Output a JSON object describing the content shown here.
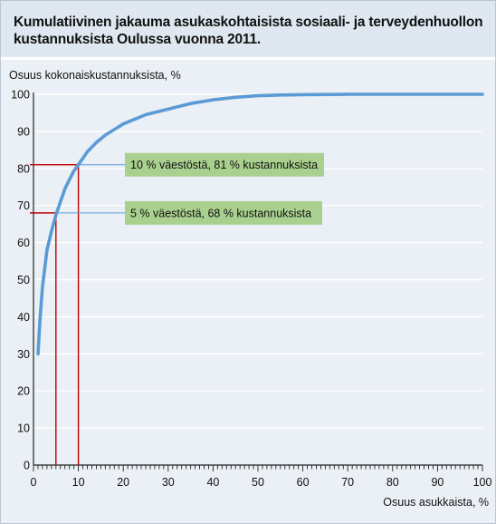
{
  "title": {
    "line1": "Kumulatiivinen jakauma asukaskohtaisista sosiaali- ja terveydenhuollon",
    "line2": "kustannuksista Oulussa vuonna 2011."
  },
  "chart_data": {
    "type": "line",
    "title": "Kumulatiivinen jakauma asukaskohtaisista sosiaali- ja terveydenhuollon kustannuksista Oulussa vuonna 2011.",
    "ylabel": "Osuus kokonaiskustannuksista, %",
    "xlabel": "Osuus asukkaista, %",
    "xlim": [
      0,
      100
    ],
    "ylim": [
      0,
      100
    ],
    "x_ticks": [
      0,
      10,
      20,
      30,
      40,
      50,
      60,
      70,
      80,
      90,
      100
    ],
    "y_ticks": [
      0,
      10,
      20,
      30,
      40,
      50,
      60,
      70,
      80,
      90,
      100
    ],
    "x_minor_step": 1,
    "grid": "horizontal",
    "series": [
      {
        "color": "#5b9bd5",
        "x": [
          1,
          1.5,
          2,
          3,
          4,
          5,
          6,
          7,
          8,
          9,
          10,
          12,
          14,
          16,
          18,
          20,
          25,
          30,
          35,
          40,
          45,
          50,
          55,
          60,
          70,
          80,
          90,
          100
        ],
        "y": [
          30,
          40,
          48,
          58,
          63,
          67.5,
          71,
          74.5,
          77,
          79.3,
          81,
          84.5,
          87,
          89,
          90.5,
          92,
          94.5,
          96,
          97.5,
          98.5,
          99.2,
          99.6,
          99.8,
          99.9,
          100,
          100,
          100,
          100
        ]
      }
    ],
    "annotations": [
      {
        "text": "10 % väestöstä, 81 % kustannuksista",
        "x": 10,
        "y": 81
      },
      {
        "text": "5 % väestöstä, 68 % kustannuksista",
        "x": 5,
        "y": 68
      }
    ],
    "annotation_box_color": "#a9d08e",
    "reference_line_color": "#c00000",
    "guide_line_color": "#5b9bd5"
  }
}
